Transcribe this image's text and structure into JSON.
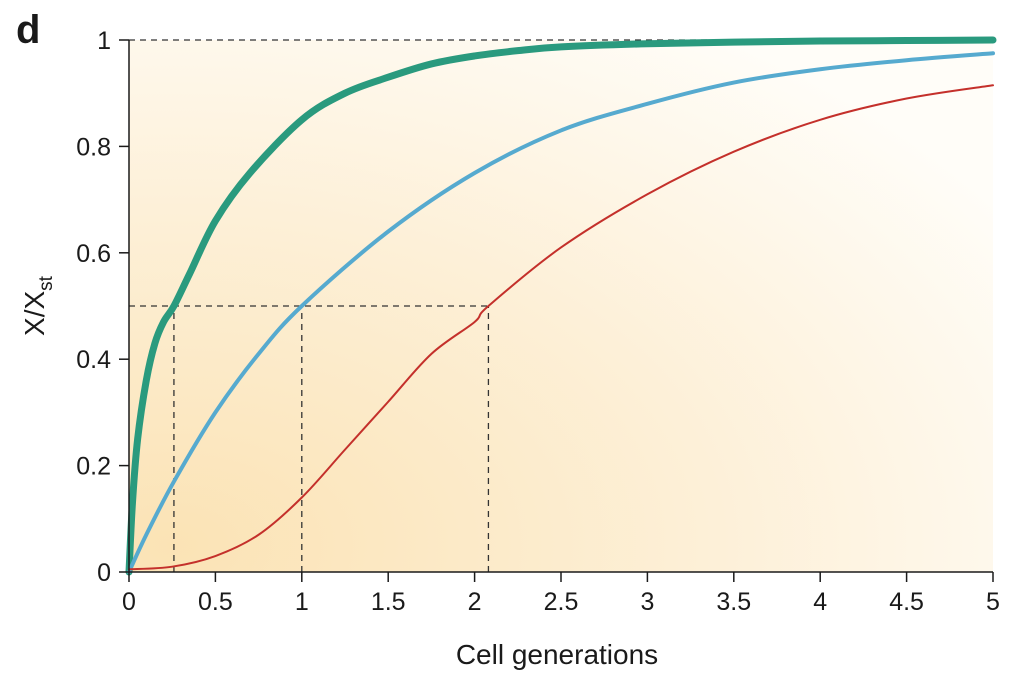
{
  "panel_label": "d",
  "chart_data": {
    "type": "line",
    "xlabel": "Cell generations",
    "ylabel": {
      "main": "X/X",
      "subscript": "st"
    },
    "xlim": [
      0,
      5
    ],
    "ylim": [
      0,
      1
    ],
    "x_ticks": [
      0,
      0.5,
      1,
      1.5,
      2,
      2.5,
      3,
      3.5,
      4,
      4.5,
      5
    ],
    "x_tick_labels": [
      "0",
      "0.5",
      "1",
      "1.5",
      "2",
      "2.5",
      "3",
      "3.5",
      "4",
      "4.5",
      "5"
    ],
    "y_ticks": [
      0,
      0.2,
      0.4,
      0.6,
      0.8,
      1
    ],
    "y_tick_labels": [
      "0",
      "0.2",
      "0.4",
      "0.6",
      "0.8",
      "1"
    ],
    "grid": false,
    "legend": "none",
    "background": "gradient-cream",
    "series": [
      {
        "color": "#2a9a7e",
        "stroke": "thick",
        "x": [
          0,
          0.02,
          0.05,
          0.1,
          0.15,
          0.2,
          0.26,
          0.35,
          0.5,
          0.7,
          1,
          1.25,
          1.5,
          1.75,
          2,
          2.25,
          2.5,
          3,
          3.5,
          4,
          4.5,
          5
        ],
        "y": [
          0,
          0.13,
          0.25,
          0.36,
          0.43,
          0.47,
          0.5,
          0.56,
          0.66,
          0.75,
          0.85,
          0.9,
          0.93,
          0.955,
          0.97,
          0.98,
          0.987,
          0.993,
          0.996,
          0.998,
          0.999,
          1.0
        ]
      },
      {
        "color": "#56aacf",
        "stroke": "medium",
        "x": [
          0,
          0.1,
          0.26,
          0.5,
          0.75,
          1,
          1.5,
          2,
          2.5,
          3,
          3.5,
          4,
          4.5,
          5
        ],
        "y": [
          0,
          0.07,
          0.17,
          0.3,
          0.41,
          0.5,
          0.64,
          0.75,
          0.83,
          0.88,
          0.92,
          0.945,
          0.962,
          0.975
        ]
      },
      {
        "color": "#c4302b",
        "stroke": "thin",
        "x": [
          0,
          0.25,
          0.5,
          0.75,
          1,
          1.25,
          1.5,
          1.75,
          2,
          2.08,
          2.5,
          3,
          3.5,
          4,
          4.5,
          5
        ],
        "y": [
          0.005,
          0.01,
          0.03,
          0.07,
          0.14,
          0.23,
          0.32,
          0.41,
          0.47,
          0.5,
          0.61,
          0.71,
          0.79,
          0.85,
          0.89,
          0.915
        ]
      }
    ],
    "annotations": {
      "reference_lines": [
        {
          "orientation": "horizontal",
          "y": 1,
          "x_from": 0,
          "x_to": 5
        },
        {
          "orientation": "horizontal",
          "y": 0.5,
          "x_from": 0,
          "x_to": 2.08
        },
        {
          "orientation": "vertical",
          "x": 0.26,
          "y_from": 0,
          "y_to": 0.5
        },
        {
          "orientation": "vertical",
          "x": 1,
          "y_from": 0,
          "y_to": 0.5
        },
        {
          "orientation": "vertical",
          "x": 2.08,
          "y_from": 0,
          "y_to": 0.5
        }
      ],
      "line_style": "dashed",
      "line_color": "#333333"
    }
  }
}
